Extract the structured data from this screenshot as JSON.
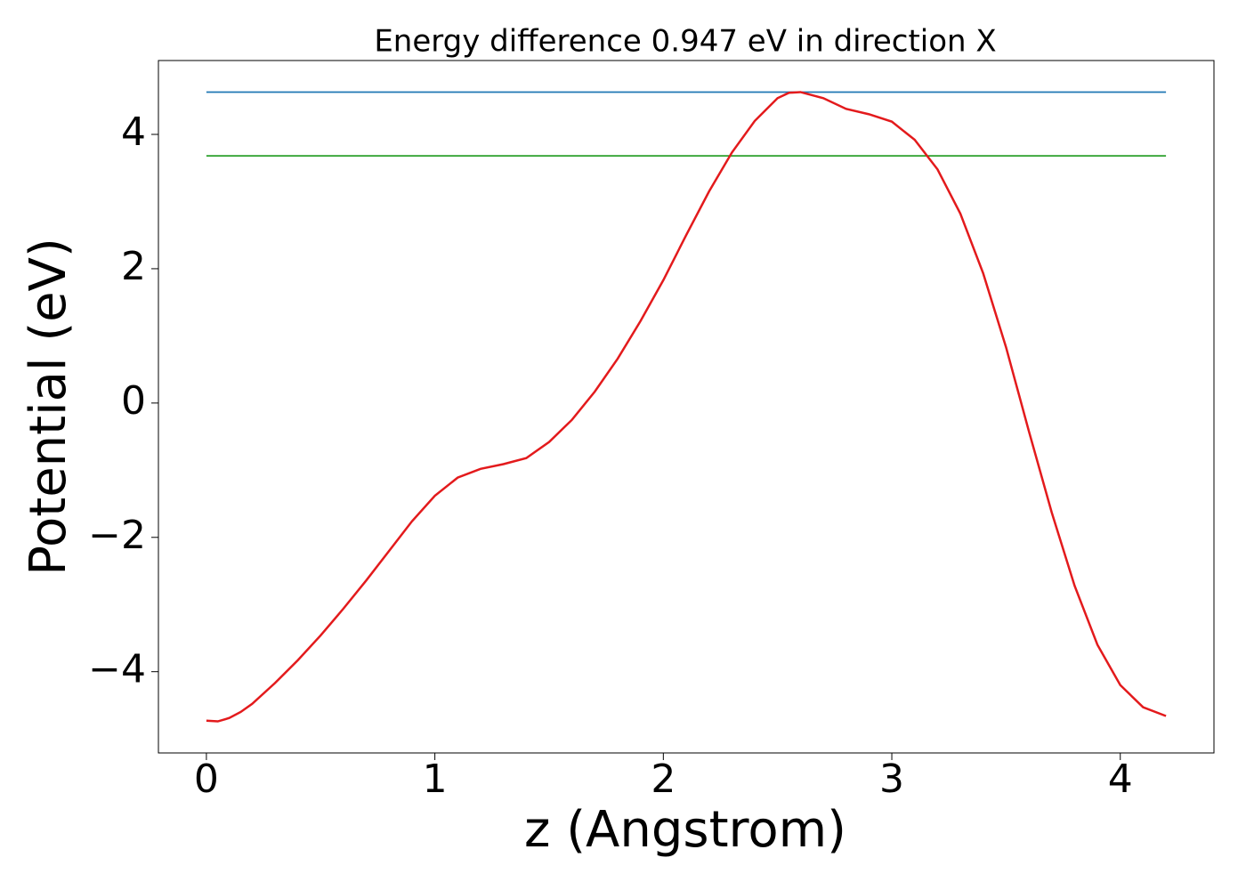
{
  "chart_data": {
    "type": "line",
    "title": "Energy difference 0.947 eV in direction X",
    "xlabel": "z (Angstrom)",
    "ylabel": "Potential (eV)",
    "xlim": [
      -0.21,
      4.41
    ],
    "ylim": [
      -5.21,
      5.1
    ],
    "xticks": [
      0,
      1,
      2,
      3,
      4
    ],
    "yticks": [
      {
        "value": -4,
        "label": "−4"
      },
      {
        "value": -2,
        "label": "−2"
      },
      0,
      2,
      4
    ],
    "grid": false,
    "series": [
      {
        "color": "#1f77b4",
        "x": [
          0,
          4.2
        ],
        "values": [
          4.63,
          4.63
        ]
      },
      {
        "color": "#2ca02c",
        "x": [
          0,
          4.2
        ],
        "values": [
          3.68,
          3.68
        ]
      },
      {
        "color": "#e31a1c",
        "x": [
          0,
          0.05,
          0.1,
          0.15,
          0.2,
          0.3,
          0.4,
          0.5,
          0.6,
          0.7,
          0.8,
          0.9,
          1.0,
          1.1,
          1.2,
          1.3,
          1.4,
          1.5,
          1.6,
          1.7,
          1.8,
          1.9,
          2.0,
          2.1,
          2.2,
          2.3,
          2.4,
          2.5,
          2.55,
          2.6,
          2.7,
          2.8,
          2.9,
          3.0,
          3.1,
          3.2,
          3.3,
          3.4,
          3.5,
          3.6,
          3.7,
          3.8,
          3.9,
          4.0,
          4.1,
          4.2
        ],
        "values": [
          -4.73,
          -4.74,
          -4.69,
          -4.6,
          -4.48,
          -4.17,
          -3.83,
          -3.46,
          -3.06,
          -2.64,
          -2.2,
          -1.76,
          -1.38,
          -1.11,
          -0.98,
          -0.91,
          -0.82,
          -0.58,
          -0.25,
          0.17,
          0.66,
          1.22,
          1.83,
          2.5,
          3.15,
          3.73,
          4.2,
          4.54,
          4.62,
          4.63,
          4.54,
          4.38,
          4.3,
          4.19,
          3.92,
          3.48,
          2.82,
          1.93,
          0.83,
          -0.42,
          -1.63,
          -2.72,
          -3.6,
          -4.2,
          -4.53,
          -4.66
        ]
      }
    ]
  }
}
